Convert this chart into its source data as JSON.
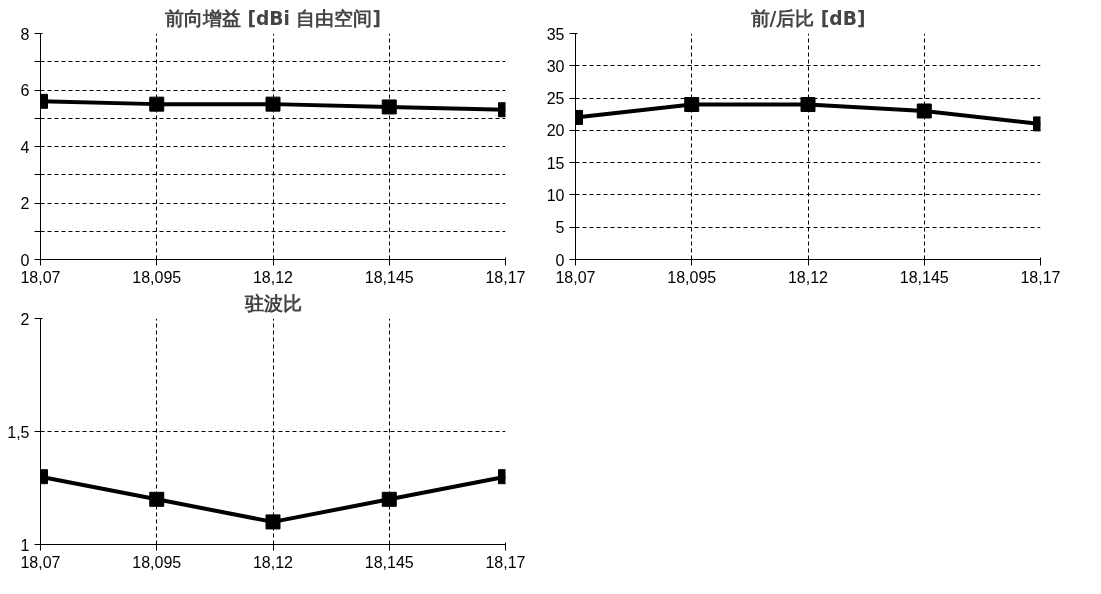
{
  "chart_data": [
    {
      "type": "line",
      "title": "前向增益 [dBi 自由空间]",
      "categories": [
        "18,07",
        "18,095",
        "18,12",
        "18,145",
        "18,17"
      ],
      "series": [
        {
          "color": "#000000",
          "values": [
            5.6,
            5.5,
            5.5,
            5.4,
            5.3
          ]
        }
      ],
      "ylim": [
        0,
        8
      ],
      "yticks": [
        0,
        {
          "value": 1,
          "label": null
        },
        2,
        {
          "value": 3,
          "label": null
        },
        4,
        {
          "value": 5,
          "label": null
        },
        6,
        {
          "value": 7,
          "label": null
        },
        8
      ],
      "grid": true,
      "marker": "square",
      "line_style": "solid"
    },
    {
      "type": "line",
      "title": "前/后比 [dB]",
      "categories": [
        "18,07",
        "18,095",
        "18,12",
        "18,145",
        "18,17"
      ],
      "series": [
        {
          "color": "#000000",
          "values": [
            22,
            24,
            24,
            23,
            21
          ]
        }
      ],
      "ylim": [
        0,
        35
      ],
      "yticks": [
        0,
        5,
        10,
        15,
        20,
        25,
        30,
        35
      ],
      "grid": true,
      "marker": "square",
      "line_style": "solid"
    },
    {
      "type": "line",
      "title": "驻波比",
      "categories": [
        "18,07",
        "18,095",
        "18,12",
        "18,145",
        "18,17"
      ],
      "series": [
        {
          "color": "#000000",
          "values": [
            1.3,
            1.2,
            1.1,
            1.2,
            1.3
          ]
        }
      ],
      "ylim": [
        1,
        2
      ],
      "yticks": [
        1,
        {
          "value": 1.5,
          "label": "1,5"
        },
        2
      ],
      "grid": true,
      "marker": "square",
      "line_style": "solid"
    }
  ]
}
